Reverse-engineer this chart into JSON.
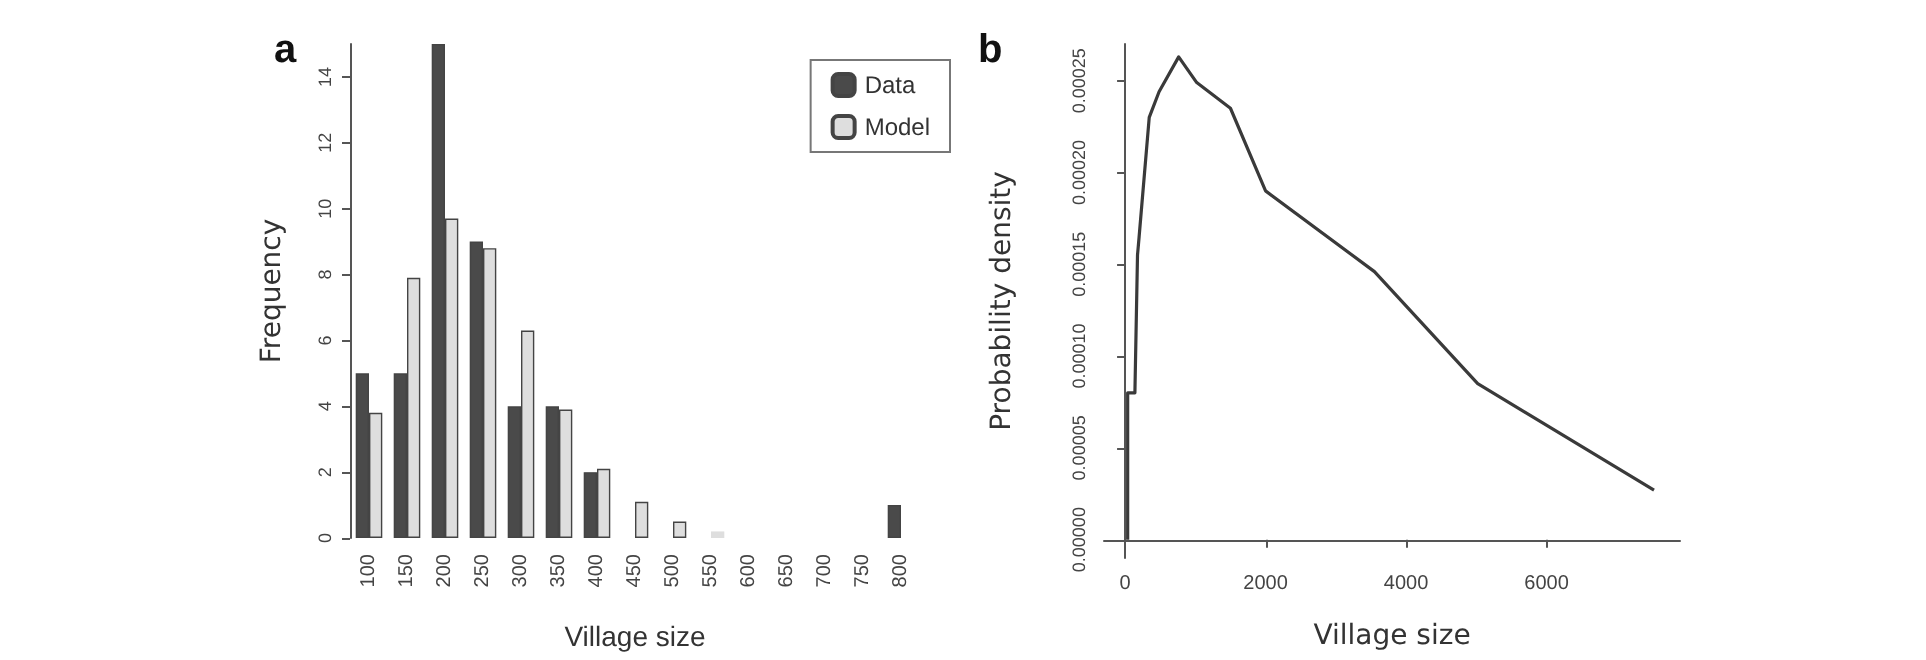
{
  "chart_data": [
    {
      "type": "bar",
      "title": "a",
      "xlabel": "Village size",
      "ylabel": "Frequency",
      "categories": [
        "100",
        "150",
        "200",
        "250",
        "300",
        "350",
        "400",
        "450",
        "500",
        "550",
        "600",
        "650",
        "700",
        "750",
        "800"
      ],
      "series": [
        {
          "name": "Data",
          "color": "#4a4a4a",
          "values": [
            5,
            5,
            15,
            9,
            4,
            4,
            2,
            0,
            0,
            0,
            0,
            0,
            0,
            0,
            1
          ]
        },
        {
          "name": "Model",
          "color": "#dedede",
          "values": [
            3.8,
            7.9,
            9.7,
            8.8,
            6.3,
            3.9,
            2.1,
            1.1,
            0.5,
            0.2,
            0,
            0,
            0,
            0,
            0
          ]
        }
      ],
      "ylim": [
        0,
        15
      ],
      "yticks": [
        0,
        2,
        4,
        6,
        8,
        10,
        12,
        14
      ],
      "legend": "top right"
    },
    {
      "type": "line",
      "title": "b",
      "xlabel": "Village size",
      "ylabel": "Probability density",
      "marker": "none",
      "series": [
        {
          "color": "#3a3a3a",
          "x": [
            37,
            37,
            140,
            177,
            200,
            344,
            484,
            763,
            1020,
            1500,
            2000,
            3550,
            5020,
            7530
          ],
          "values": [
            0,
            8e-05,
            8e-05,
            0.000155,
            0.000165,
            0.00023,
            0.000244,
            0.000263,
            0.000249,
            0.000235,
            0.00019,
            0.000146,
            8.5e-05,
            2.7e-05
          ]
        }
      ],
      "xlim": [
        -300,
        7900
      ],
      "xticks": [
        0,
        2000,
        4000,
        6000
      ],
      "ylim": [
        -1e-05,
        0.00027
      ],
      "yticks": [
        {
          "value": 0,
          "label": "0.00000"
        },
        {
          "value": 5e-05,
          "label": "0.00005"
        },
        {
          "value": 0.0001,
          "label": "0.00010"
        },
        {
          "value": 0.00015,
          "label": "0.00015"
        },
        {
          "value": 0.0002,
          "label": "0.00020"
        },
        {
          "value": 0.00025,
          "label": "0.00025"
        }
      ]
    }
  ]
}
